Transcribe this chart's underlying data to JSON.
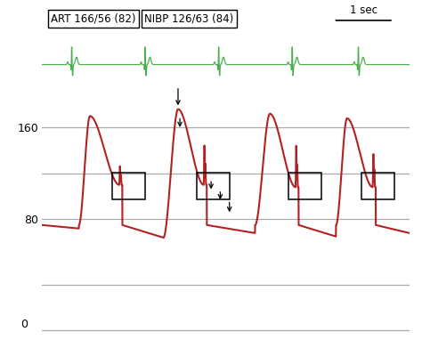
{
  "bg_color": "#ffffff",
  "art_label": "ART 166/56 (82)",
  "nibp_label": "NIBP 126/63 (84)",
  "sec_label": "1 sec",
  "ecg_color": "#4caf50",
  "art_color": "#b22222",
  "arrow_color": "#111111",
  "grid_color": "#aaaaaa",
  "label_fontsize": 8.5,
  "tick_fontsize": 9
}
